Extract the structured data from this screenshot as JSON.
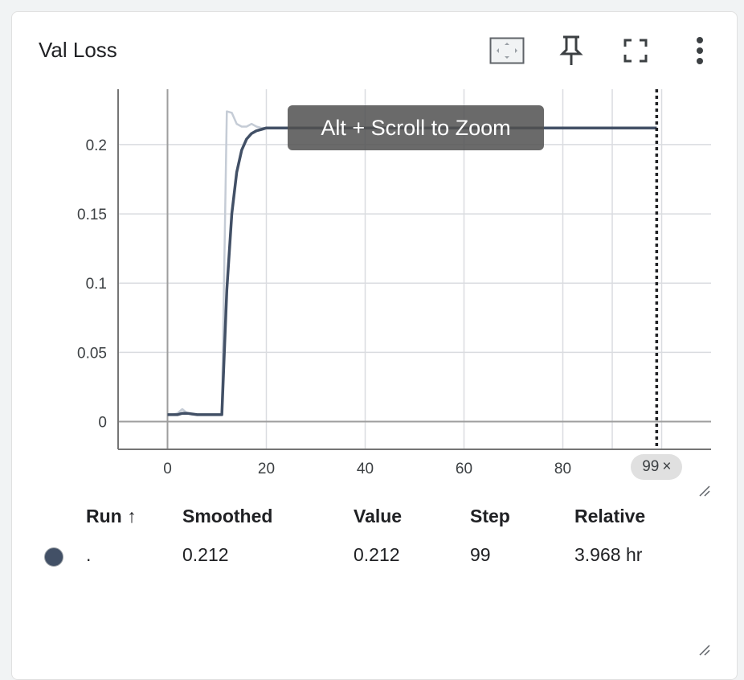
{
  "card": {
    "title": "Val Loss",
    "toolbar": [
      {
        "name": "fit-domain-icon"
      },
      {
        "name": "pin-icon"
      },
      {
        "name": "fullscreen-icon"
      },
      {
        "name": "more-vert-icon"
      }
    ]
  },
  "tooltip": "Alt + Scroll to Zoom",
  "step_chip": {
    "label": "99",
    "close": "×"
  },
  "table": {
    "headers": {
      "run": "Run ↑",
      "smoothed": "Smoothed",
      "value": "Value",
      "step": "Step",
      "relative": "Relative"
    },
    "rows": [
      {
        "run": ".",
        "smoothed": "0.212",
        "value": "0.212",
        "step": "99",
        "relative": "3.968 hr",
        "color": "#425066"
      }
    ]
  },
  "chart_data": {
    "type": "line",
    "title": "Val Loss",
    "xlabel": "",
    "ylabel": "",
    "xlim": [
      -10,
      110
    ],
    "ylim": [
      -0.02,
      0.24
    ],
    "x_ticks": [
      0,
      20,
      40,
      60,
      80
    ],
    "y_ticks": [
      0,
      0.05,
      0.1,
      0.15,
      0.2
    ],
    "y_tick_labels": [
      "0",
      "0.05",
      "0.1",
      "0.15",
      "0.2"
    ],
    "grid": true,
    "cursor_step": 99,
    "series": [
      {
        "name": "",
        "role": "raw",
        "color": "#c5ccd6",
        "x": [
          0,
          1,
          2,
          3,
          4,
          5,
          6,
          7,
          8,
          9,
          10,
          11,
          12,
          13,
          14,
          15,
          16,
          17,
          18,
          19,
          20,
          25,
          30,
          40,
          60,
          80,
          99
        ],
        "y": [
          0.005,
          0.005,
          0.006,
          0.009,
          0.006,
          0.005,
          0.005,
          0.005,
          0.005,
          0.005,
          0.005,
          0.005,
          0.224,
          0.223,
          0.215,
          0.213,
          0.213,
          0.215,
          0.213,
          0.212,
          0.212,
          0.212,
          0.212,
          0.212,
          0.212,
          0.212,
          0.212
        ]
      },
      {
        "name": "",
        "role": "smoothed",
        "color": "#425066",
        "x": [
          0,
          2,
          3,
          4,
          6,
          8,
          10,
          11,
          12,
          13,
          14,
          15,
          16,
          17,
          18,
          19,
          20,
          22,
          25,
          30,
          40,
          60,
          80,
          99
        ],
        "y": [
          0.005,
          0.005,
          0.006,
          0.006,
          0.005,
          0.005,
          0.005,
          0.005,
          0.095,
          0.15,
          0.18,
          0.196,
          0.204,
          0.208,
          0.21,
          0.211,
          0.212,
          0.212,
          0.212,
          0.212,
          0.212,
          0.212,
          0.212,
          0.212
        ]
      }
    ]
  }
}
